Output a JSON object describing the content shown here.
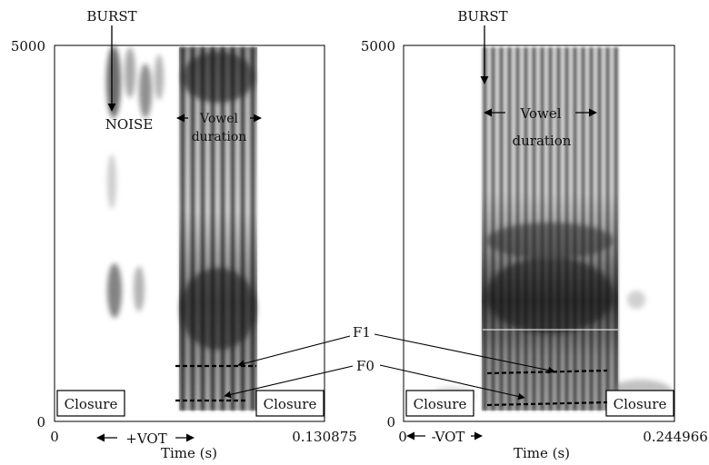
{
  "panels": [
    {
      "id": "left",
      "y_max_label": "5000",
      "y_min_label": "0",
      "x_min_label": "0",
      "x_max_label": "0.130875",
      "x_axis_title": "Time (s)",
      "burst_label": "BURST",
      "noise_label": "NOISE",
      "vowel_label_1": "Vowel",
      "vowel_label_2": "duration",
      "closure_left": "Closure",
      "closure_right": "Closure",
      "vot_label": "+VOT"
    },
    {
      "id": "right",
      "y_max_label": "5000",
      "y_min_label": "0",
      "x_min_label": "0",
      "x_max_label": "0.244966",
      "x_axis_title": "Time (s)",
      "burst_label": "BURST",
      "vowel_label_1": "Vowel",
      "vowel_label_2": "duration",
      "closure_left": "Closure",
      "closure_right": "Closure",
      "vot_label": "-VOT"
    }
  ],
  "formant_labels": {
    "f1": "F1",
    "f0": "F0"
  },
  "colors": {
    "spectrogram_dark": "#1a1a1a",
    "spectrogram_mid": "#777777",
    "frame": "#000000"
  }
}
